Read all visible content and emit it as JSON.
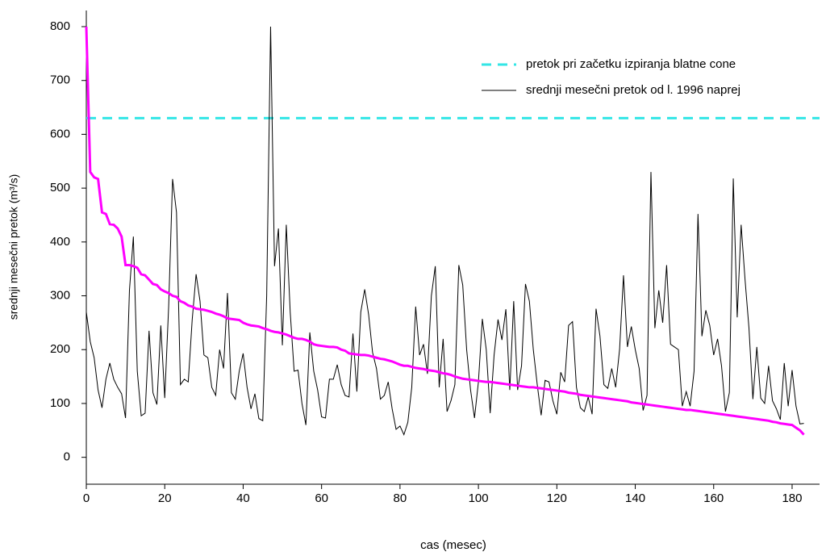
{
  "chart_data": {
    "type": "line",
    "xlabel": "cas (mesec)",
    "ylabel": "srednji mesečni pretok (m³/s)",
    "x": [
      0,
      1,
      2,
      3,
      4,
      5,
      6,
      7,
      8,
      9,
      10,
      11,
      12,
      13,
      14,
      15,
      16,
      17,
      18,
      19,
      20,
      21,
      22,
      23,
      24,
      25,
      26,
      27,
      28,
      29,
      30,
      31,
      32,
      33,
      34,
      35,
      36,
      37,
      38,
      39,
      40,
      41,
      42,
      43,
      44,
      45,
      46,
      47,
      48,
      49,
      50,
      51,
      52,
      53,
      54,
      55,
      56,
      57,
      58,
      59,
      60,
      61,
      62,
      63,
      64,
      65,
      66,
      67,
      68,
      69,
      70,
      71,
      72,
      73,
      74,
      75,
      76,
      77,
      78,
      79,
      80,
      81,
      82,
      83,
      84,
      85,
      86,
      87,
      88,
      89,
      90,
      91,
      92,
      93,
      94,
      95,
      96,
      97,
      98,
      99,
      100,
      101,
      102,
      103,
      104,
      105,
      106,
      107,
      108,
      109,
      110,
      111,
      112,
      113,
      114,
      115,
      116,
      117,
      118,
      119,
      120,
      121,
      122,
      123,
      124,
      125,
      126,
      127,
      128,
      129,
      130,
      131,
      132,
      133,
      134,
      135,
      136,
      137,
      138,
      139,
      140,
      141,
      142,
      143,
      144,
      145,
      146,
      147,
      148,
      149,
      150,
      151,
      152,
      153,
      154,
      155,
      156,
      157,
      158,
      159,
      160,
      161,
      162,
      163,
      164,
      165,
      166,
      167,
      168,
      169,
      170,
      171,
      172,
      173,
      174,
      175,
      176,
      177,
      178,
      179,
      180,
      181,
      182,
      183
    ],
    "series": [
      {
        "name": "pretok pri začetku izpiranja blatne cone",
        "color": "#33e6e6",
        "dashed": true,
        "x": [
          0,
          187
        ],
        "values": [
          630,
          630
        ]
      },
      {
        "name": "srednji mesečni pretok od l. 1996 naprej",
        "color": "#000000",
        "values": [
          270,
          215,
          185,
          125,
          92,
          145,
          175,
          145,
          130,
          118,
          73,
          310,
          410,
          160,
          77,
          82,
          235,
          120,
          98,
          245,
          110,
          280,
          517,
          455,
          135,
          145,
          140,
          255,
          340,
          290,
          190,
          185,
          130,
          115,
          200,
          165,
          305,
          120,
          108,
          160,
          193,
          130,
          90,
          118,
          72,
          68,
          300,
          800,
          355,
          425,
          208,
          432,
          270,
          160,
          162,
          100,
          60,
          232,
          160,
          125,
          75,
          73,
          145,
          145,
          172,
          135,
          115,
          112,
          230,
          122,
          270,
          312,
          265,
          195,
          165,
          108,
          115,
          140,
          90,
          52,
          58,
          42,
          65,
          130,
          280,
          190,
          210,
          155,
          300,
          355,
          130,
          220,
          85,
          105,
          135,
          357,
          320,
          200,
          125,
          73,
          140,
          257,
          200,
          82,
          190,
          256,
          218,
          275,
          125,
          290,
          125,
          170,
          322,
          290,
          200,
          135,
          78,
          143,
          140,
          105,
          80,
          158,
          140,
          245,
          252,
          130,
          92,
          85,
          112,
          80,
          276,
          225,
          135,
          128,
          165,
          130,
          200,
          338,
          205,
          243,
          200,
          165,
          87,
          115,
          530,
          240,
          310,
          250,
          357,
          210,
          205,
          200,
          95,
          122,
          95,
          160,
          452,
          225,
          273,
          245,
          190,
          220,
          170,
          85,
          120,
          518,
          260,
          432,
          330,
          240,
          108,
          205,
          110,
          100,
          170,
          105,
          90,
          70,
          175,
          95,
          162,
          95,
          62,
          63
        ]
      },
      {
        "color": "#ff00ff",
        "values": [
          800,
          530,
          520,
          517,
          455,
          452,
          433,
          432,
          425,
          410,
          357,
          357,
          355,
          352,
          340,
          338,
          330,
          322,
          320,
          312,
          308,
          305,
          300,
          298,
          290,
          287,
          282,
          280,
          276,
          275,
          274,
          272,
          270,
          267,
          265,
          262,
          258,
          257,
          256,
          255,
          250,
          247,
          245,
          244,
          243,
          240,
          238,
          235,
          233,
          232,
          230,
          228,
          225,
          222,
          220,
          220,
          218,
          215,
          210,
          208,
          207,
          206,
          205,
          205,
          204,
          200,
          198,
          193,
          192,
          191,
          190,
          190,
          189,
          187,
          185,
          183,
          182,
          180,
          178,
          175,
          172,
          170,
          170,
          168,
          166,
          165,
          164,
          162,
          161,
          160,
          158,
          156,
          155,
          153,
          150,
          148,
          146,
          145,
          144,
          143,
          142,
          141,
          140,
          140,
          139,
          138,
          137,
          136,
          135,
          134,
          133,
          132,
          131,
          130,
          130,
          129,
          128,
          127,
          126,
          125,
          124,
          123,
          122,
          120,
          119,
          118,
          116,
          115,
          114,
          113,
          112,
          111,
          110,
          109,
          108,
          107,
          106,
          105,
          104,
          102,
          101,
          100,
          99,
          98,
          97,
          96,
          95,
          94,
          93,
          92,
          91,
          90,
          89,
          88,
          88,
          87,
          86,
          85,
          84,
          83,
          82,
          81,
          80,
          79,
          78,
          77,
          76,
          75,
          74,
          73,
          72,
          71,
          70,
          69,
          68,
          66,
          65,
          63,
          62,
          61,
          60,
          55,
          50,
          42
        ]
      }
    ],
    "xlim": [
      0,
      187
    ],
    "xticks": [
      0,
      20,
      40,
      60,
      80,
      100,
      120,
      140,
      160,
      180
    ],
    "ylim": [
      -50,
      830
    ],
    "yticks": [
      0,
      100,
      200,
      300,
      400,
      500,
      600,
      700,
      800
    ],
    "grid": false,
    "legend": "upper right"
  }
}
